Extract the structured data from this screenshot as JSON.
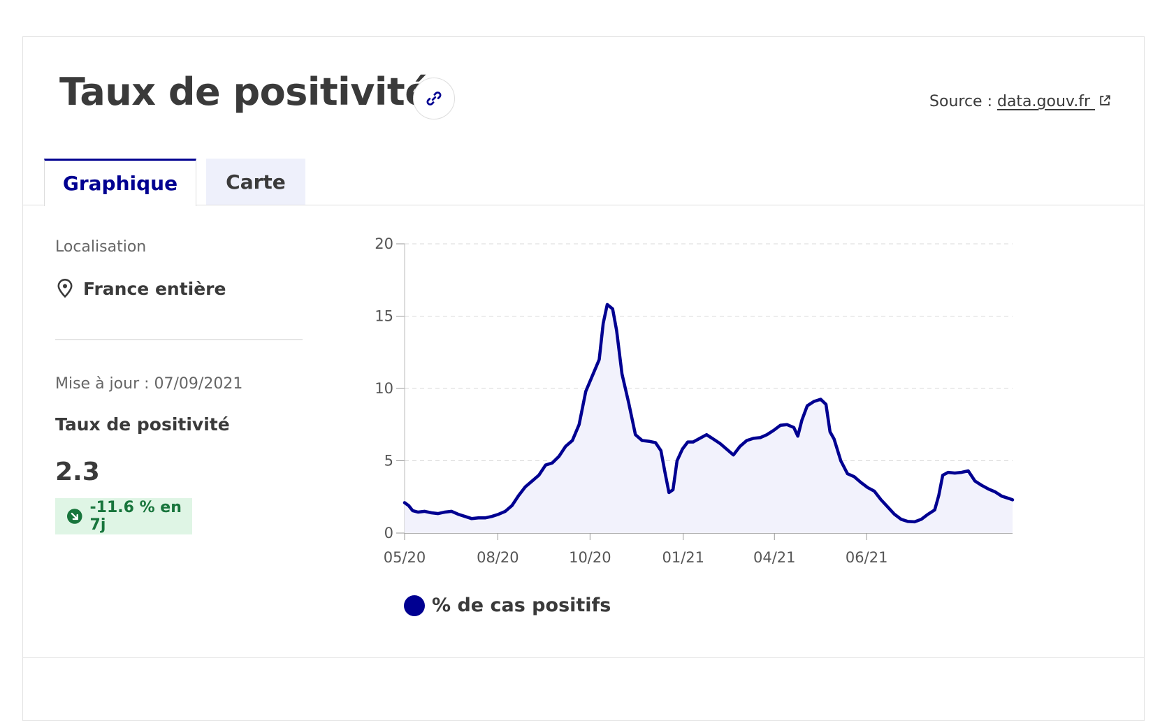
{
  "header": {
    "title": "Taux de positivité",
    "source_prefix": "Source : ",
    "source_link": "data.gouv.fr",
    "link_icon": "link-icon",
    "external_icon": "external-link-icon"
  },
  "tabs": [
    {
      "label": "Graphique",
      "active": true
    },
    {
      "label": "Carte",
      "active": false
    }
  ],
  "sidebar": {
    "location_label": "Localisation",
    "location_value": "France entière",
    "location_icon": "map-pin-icon",
    "updated": "Mise à jour : 07/09/2021",
    "metric_label": "Taux de positivité",
    "metric_value": "2.3",
    "trend": "-11.6 % en 7j",
    "trend_icon": "arrow-down-right-icon"
  },
  "colors": {
    "primary": "#000091",
    "area_fill": "#f2f2fc",
    "badge_bg": "#dff5e5",
    "badge_text": "#18753c"
  },
  "chart_data": {
    "type": "area",
    "title": "",
    "xlabel": "",
    "ylabel": "",
    "ylim": [
      0,
      20
    ],
    "yticks": [
      "0",
      "5",
      "10",
      "15",
      "20"
    ],
    "xticks": [
      "05/20",
      "08/20",
      "10/20",
      "01/21",
      "04/21",
      "06/21"
    ],
    "grid": true,
    "legend_position": "bottom-left",
    "series": [
      {
        "name": "% de cas positifs",
        "points": [
          [
            0,
            2.1
          ],
          [
            3,
            1.9
          ],
          [
            6,
            1.55
          ],
          [
            10,
            1.45
          ],
          [
            15,
            1.5
          ],
          [
            20,
            1.4
          ],
          [
            25,
            1.35
          ],
          [
            30,
            1.45
          ],
          [
            35,
            1.5
          ],
          [
            40,
            1.3
          ],
          [
            45,
            1.15
          ],
          [
            50,
            1.0
          ],
          [
            55,
            1.05
          ],
          [
            60,
            1.05
          ],
          [
            65,
            1.15
          ],
          [
            70,
            1.3
          ],
          [
            75,
            1.5
          ],
          [
            80,
            1.9
          ],
          [
            85,
            2.6
          ],
          [
            90,
            3.2
          ],
          [
            95,
            3.6
          ],
          [
            100,
            4.0
          ],
          [
            105,
            4.7
          ],
          [
            110,
            4.85
          ],
          [
            115,
            5.3
          ],
          [
            120,
            6.0
          ],
          [
            125,
            6.4
          ],
          [
            130,
            7.5
          ],
          [
            135,
            9.8
          ],
          [
            140,
            10.9
          ],
          [
            145,
            12.0
          ],
          [
            148,
            14.5
          ],
          [
            151,
            15.8
          ],
          [
            155,
            15.5
          ],
          [
            158,
            14.0
          ],
          [
            162,
            11.0
          ],
          [
            167,
            9.0
          ],
          [
            172,
            6.8
          ],
          [
            177,
            6.4
          ],
          [
            182,
            6.35
          ],
          [
            187,
            6.25
          ],
          [
            191,
            5.7
          ],
          [
            194,
            4.2
          ],
          [
            197,
            2.8
          ],
          [
            200,
            3.0
          ],
          [
            203,
            5.0
          ],
          [
            207,
            5.8
          ],
          [
            211,
            6.3
          ],
          [
            215,
            6.3
          ],
          [
            220,
            6.55
          ],
          [
            225,
            6.8
          ],
          [
            230,
            6.5
          ],
          [
            235,
            6.2
          ],
          [
            240,
            5.8
          ],
          [
            245,
            5.4
          ],
          [
            250,
            6.0
          ],
          [
            255,
            6.4
          ],
          [
            260,
            6.55
          ],
          [
            265,
            6.6
          ],
          [
            270,
            6.8
          ],
          [
            275,
            7.1
          ],
          [
            280,
            7.45
          ],
          [
            285,
            7.5
          ],
          [
            290,
            7.3
          ],
          [
            293,
            6.7
          ],
          [
            296,
            7.8
          ],
          [
            300,
            8.8
          ],
          [
            305,
            9.1
          ],
          [
            310,
            9.25
          ],
          [
            314,
            8.9
          ],
          [
            317,
            7.0
          ],
          [
            320,
            6.5
          ],
          [
            325,
            5.0
          ],
          [
            330,
            4.1
          ],
          [
            335,
            3.9
          ],
          [
            340,
            3.5
          ],
          [
            345,
            3.15
          ],
          [
            350,
            2.9
          ],
          [
            355,
            2.3
          ],
          [
            360,
            1.8
          ],
          [
            365,
            1.3
          ],
          [
            370,
            0.95
          ],
          [
            375,
            0.8
          ],
          [
            380,
            0.78
          ],
          [
            385,
            0.95
          ],
          [
            390,
            1.3
          ],
          [
            395,
            1.6
          ],
          [
            398,
            2.6
          ],
          [
            401,
            4.0
          ],
          [
            405,
            4.2
          ],
          [
            410,
            4.15
          ],
          [
            415,
            4.2
          ],
          [
            420,
            4.3
          ],
          [
            425,
            3.6
          ],
          [
            430,
            3.3
          ],
          [
            435,
            3.05
          ],
          [
            440,
            2.85
          ],
          [
            445,
            2.55
          ],
          [
            450,
            2.4
          ],
          [
            453,
            2.3
          ]
        ]
      }
    ]
  }
}
